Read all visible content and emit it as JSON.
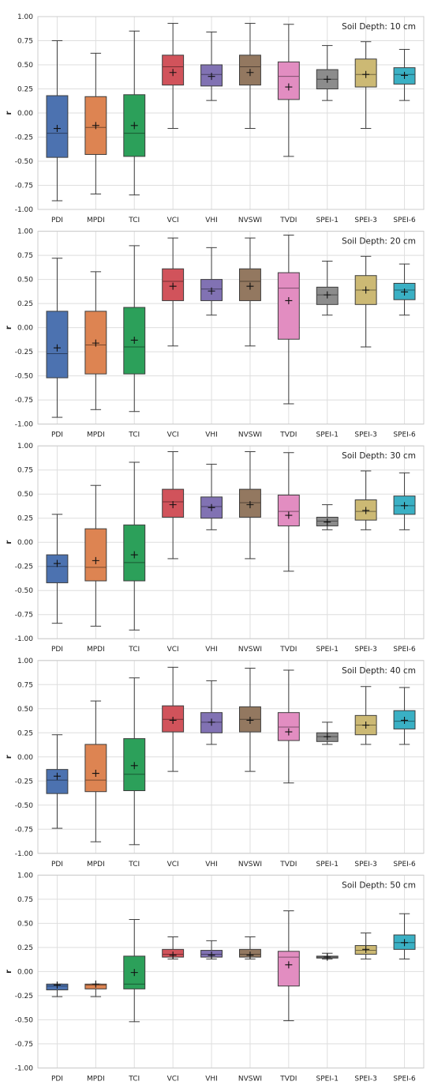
{
  "ylabel": "r",
  "categories": [
    "PDI",
    "MPDI",
    "TCI",
    "VCI",
    "VHI",
    "NVSWI",
    "TVDI",
    "SPEI-1",
    "SPEI-3",
    "SPEI-6"
  ],
  "colors": [
    "#4c72b0",
    "#dd8452",
    "#2ca05a",
    "#d1535b",
    "#8172b3",
    "#937860",
    "#e28dc1",
    "#8c8c8c",
    "#ccb974",
    "#3ab0c4"
  ],
  "yticks": [
    "1.00",
    "0.75",
    "0.50",
    "0.25",
    "0.00",
    "-0.25",
    "-0.50",
    "-0.75",
    "-1.00"
  ],
  "chart_data": [
    {
      "type": "box",
      "title": "Soil Depth: 10 cm",
      "ylim": [
        -1.0,
        1.0
      ],
      "boxes": [
        {
          "min": -0.91,
          "q1": -0.46,
          "median": -0.21,
          "q3": 0.18,
          "max": 0.75,
          "mean": -0.16
        },
        {
          "min": -0.84,
          "q1": -0.43,
          "median": -0.15,
          "q3": 0.17,
          "max": 0.62,
          "mean": -0.13
        },
        {
          "min": -0.85,
          "q1": -0.45,
          "median": -0.21,
          "q3": 0.19,
          "max": 0.85,
          "mean": -0.13
        },
        {
          "min": -0.16,
          "q1": 0.29,
          "median": 0.48,
          "q3": 0.6,
          "max": 0.93,
          "mean": 0.42
        },
        {
          "min": 0.13,
          "q1": 0.28,
          "median": 0.4,
          "q3": 0.5,
          "max": 0.84,
          "mean": 0.38
        },
        {
          "min": -0.16,
          "q1": 0.29,
          "median": 0.48,
          "q3": 0.6,
          "max": 0.93,
          "mean": 0.42
        },
        {
          "min": -0.45,
          "q1": 0.14,
          "median": 0.38,
          "q3": 0.53,
          "max": 0.92,
          "mean": 0.27
        },
        {
          "min": 0.13,
          "q1": 0.25,
          "median": 0.35,
          "q3": 0.45,
          "max": 0.7,
          "mean": 0.35
        },
        {
          "min": -0.16,
          "q1": 0.27,
          "median": 0.4,
          "q3": 0.56,
          "max": 0.74,
          "mean": 0.4
        },
        {
          "min": 0.13,
          "q1": 0.3,
          "median": 0.4,
          "q3": 0.47,
          "max": 0.66,
          "mean": 0.39
        }
      ]
    },
    {
      "type": "box",
      "title": "Soil Depth: 20 cm",
      "ylim": [
        -1.0,
        1.0
      ],
      "boxes": [
        {
          "min": -0.93,
          "q1": -0.52,
          "median": -0.27,
          "q3": 0.17,
          "max": 0.72,
          "mean": -0.21
        },
        {
          "min": -0.85,
          "q1": -0.48,
          "median": -0.18,
          "q3": 0.17,
          "max": 0.58,
          "mean": -0.16
        },
        {
          "min": -0.87,
          "q1": -0.48,
          "median": -0.2,
          "q3": 0.21,
          "max": 0.85,
          "mean": -0.13
        },
        {
          "min": -0.19,
          "q1": 0.28,
          "median": 0.48,
          "q3": 0.61,
          "max": 0.93,
          "mean": 0.43
        },
        {
          "min": 0.13,
          "q1": 0.28,
          "median": 0.4,
          "q3": 0.5,
          "max": 0.83,
          "mean": 0.38
        },
        {
          "min": -0.19,
          "q1": 0.28,
          "median": 0.48,
          "q3": 0.61,
          "max": 0.93,
          "mean": 0.43
        },
        {
          "min": -0.79,
          "q1": -0.12,
          "median": 0.41,
          "q3": 0.57,
          "max": 0.96,
          "mean": 0.28
        },
        {
          "min": 0.13,
          "q1": 0.24,
          "median": 0.34,
          "q3": 0.42,
          "max": 0.69,
          "mean": 0.34
        },
        {
          "min": -0.2,
          "q1": 0.24,
          "median": 0.39,
          "q3": 0.54,
          "max": 0.74,
          "mean": 0.39
        },
        {
          "min": 0.13,
          "q1": 0.29,
          "median": 0.39,
          "q3": 0.46,
          "max": 0.66,
          "mean": 0.37
        }
      ]
    },
    {
      "type": "box",
      "title": "Soil Depth: 30 cm",
      "ylim": [
        -1.0,
        1.0
      ],
      "boxes": [
        {
          "min": -0.84,
          "q1": -0.42,
          "median": -0.25,
          "q3": -0.13,
          "max": 0.29,
          "mean": -0.22
        },
        {
          "min": -0.87,
          "q1": -0.4,
          "median": -0.26,
          "q3": 0.14,
          "max": 0.59,
          "mean": -0.19
        },
        {
          "min": -0.91,
          "q1": -0.4,
          "median": -0.21,
          "q3": 0.18,
          "max": 0.83,
          "mean": -0.13
        },
        {
          "min": -0.17,
          "q1": 0.26,
          "median": 0.42,
          "q3": 0.55,
          "max": 0.94,
          "mean": 0.39
        },
        {
          "min": 0.13,
          "q1": 0.25,
          "median": 0.37,
          "q3": 0.47,
          "max": 0.81,
          "mean": 0.36
        },
        {
          "min": -0.17,
          "q1": 0.26,
          "median": 0.41,
          "q3": 0.55,
          "max": 0.94,
          "mean": 0.39
        },
        {
          "min": -0.3,
          "q1": 0.17,
          "median": 0.32,
          "q3": 0.49,
          "max": 0.93,
          "mean": 0.28
        },
        {
          "min": 0.13,
          "q1": 0.17,
          "median": 0.22,
          "q3": 0.26,
          "max": 0.39,
          "mean": 0.21
        },
        {
          "min": 0.13,
          "q1": 0.23,
          "median": 0.32,
          "q3": 0.44,
          "max": 0.74,
          "mean": 0.33
        },
        {
          "min": 0.13,
          "q1": 0.29,
          "median": 0.38,
          "q3": 0.48,
          "max": 0.72,
          "mean": 0.38
        }
      ]
    },
    {
      "type": "box",
      "title": "Soil Depth: 40 cm",
      "ylim": [
        -1.0,
        1.0
      ],
      "boxes": [
        {
          "min": -0.74,
          "q1": -0.38,
          "median": -0.24,
          "q3": -0.13,
          "max": 0.23,
          "mean": -0.2
        },
        {
          "min": -0.88,
          "q1": -0.36,
          "median": -0.24,
          "q3": 0.13,
          "max": 0.58,
          "mean": -0.17
        },
        {
          "min": -0.91,
          "q1": -0.35,
          "median": -0.18,
          "q3": 0.19,
          "max": 0.82,
          "mean": -0.09
        },
        {
          "min": -0.15,
          "q1": 0.26,
          "median": 0.39,
          "q3": 0.53,
          "max": 0.93,
          "mean": 0.38
        },
        {
          "min": 0.13,
          "q1": 0.25,
          "median": 0.36,
          "q3": 0.46,
          "max": 0.79,
          "mean": 0.36
        },
        {
          "min": -0.15,
          "q1": 0.26,
          "median": 0.39,
          "q3": 0.52,
          "max": 0.92,
          "mean": 0.38
        },
        {
          "min": -0.27,
          "q1": 0.17,
          "median": 0.31,
          "q3": 0.46,
          "max": 0.9,
          "mean": 0.26
        },
        {
          "min": 0.13,
          "q1": 0.16,
          "median": 0.21,
          "q3": 0.25,
          "max": 0.36,
          "mean": 0.21
        },
        {
          "min": 0.13,
          "q1": 0.23,
          "median": 0.33,
          "q3": 0.43,
          "max": 0.73,
          "mean": 0.33
        },
        {
          "min": 0.13,
          "q1": 0.29,
          "median": 0.37,
          "q3": 0.48,
          "max": 0.72,
          "mean": 0.38
        }
      ]
    },
    {
      "type": "box",
      "title": "Soil Depth: 50 cm",
      "ylim": [
        -1.0,
        1.0
      ],
      "boxes": [
        {
          "min": -0.26,
          "q1": -0.19,
          "median": -0.15,
          "q3": -0.13,
          "max": -0.13,
          "mean": -0.14
        },
        {
          "min": -0.26,
          "q1": -0.18,
          "median": -0.14,
          "q3": -0.13,
          "max": -0.13,
          "mean": -0.13
        },
        {
          "min": -0.52,
          "q1": -0.18,
          "median": -0.13,
          "q3": 0.16,
          "max": 0.54,
          "mean": -0.01
        },
        {
          "min": 0.13,
          "q1": 0.15,
          "median": 0.18,
          "q3": 0.23,
          "max": 0.36,
          "mean": 0.17
        },
        {
          "min": 0.13,
          "q1": 0.15,
          "median": 0.18,
          "q3": 0.22,
          "max": 0.32,
          "mean": 0.17
        },
        {
          "min": 0.13,
          "q1": 0.15,
          "median": 0.18,
          "q3": 0.23,
          "max": 0.36,
          "mean": 0.17
        },
        {
          "min": -0.51,
          "q1": -0.15,
          "median": 0.15,
          "q3": 0.21,
          "max": 0.63,
          "mean": 0.07
        },
        {
          "min": 0.13,
          "q1": 0.14,
          "median": 0.15,
          "q3": 0.16,
          "max": 0.19,
          "mean": 0.15
        },
        {
          "min": 0.13,
          "q1": 0.18,
          "median": 0.22,
          "q3": 0.27,
          "max": 0.4,
          "mean": 0.23
        },
        {
          "min": 0.13,
          "q1": 0.23,
          "median": 0.3,
          "q3": 0.38,
          "max": 0.6,
          "mean": 0.3
        }
      ]
    }
  ]
}
